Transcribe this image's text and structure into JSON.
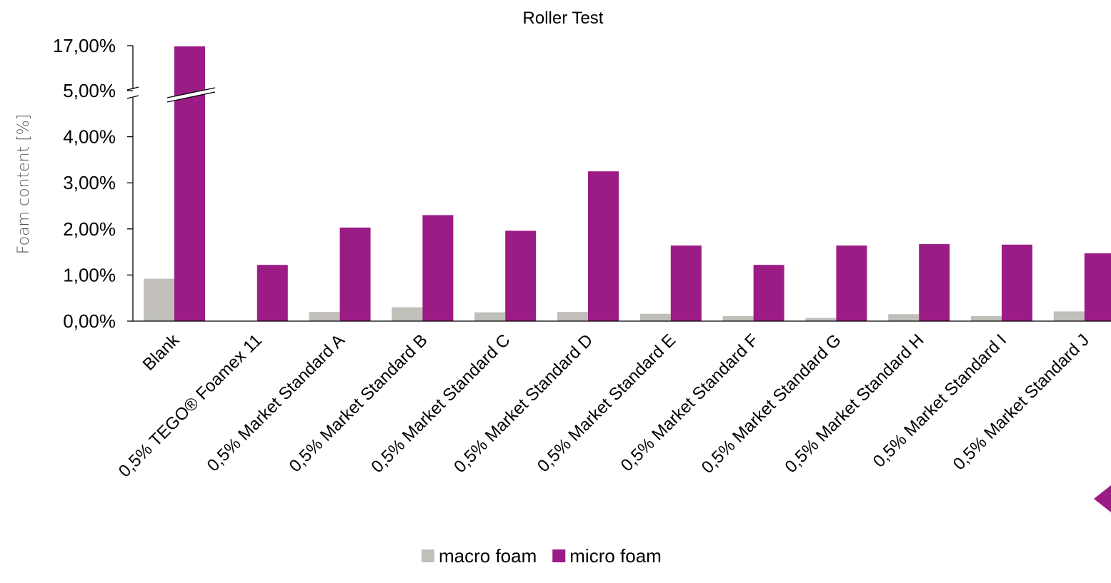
{
  "chart_data": {
    "type": "bar",
    "title": "Roller Test",
    "xlabel": "",
    "ylabel": "Foam content [%]",
    "categories": [
      "Blank",
      "0,5% TEGO® Foamex 11",
      "0,5% Market Standard A",
      "0,5% Market Standard B",
      "0,5% Market Standard C",
      "0,5% Market Standard D",
      "0,5% Market Standard E",
      "0,5% Market Standard F",
      "0,5% Market Standard G",
      "0,5% Market Standard H",
      "0,5% Market Standard I",
      "0,5% Market Standard J"
    ],
    "series": [
      {
        "name": "macro foam",
        "color": "#c1bfba",
        "values": [
          0.92,
          0.0,
          0.2,
          0.3,
          0.19,
          0.2,
          0.16,
          0.11,
          0.07,
          0.15,
          0.11,
          0.21
        ]
      },
      {
        "name": "micro foam",
        "color": "#9b1c84",
        "values": [
          16.8,
          1.22,
          2.03,
          2.3,
          1.96,
          3.25,
          1.64,
          1.22,
          1.64,
          1.67,
          1.66,
          1.47
        ]
      }
    ],
    "ylim": [
      0,
      5
    ],
    "yticks": [
      "0,00%",
      "1,00%",
      "2,00%",
      "3,00%",
      "4,00%",
      "5,00%",
      "17,00%"
    ],
    "axis_break": {
      "lower_max": 5,
      "upper_label": "17,00%"
    },
    "grid": false,
    "legend_position": "bottom-center"
  }
}
